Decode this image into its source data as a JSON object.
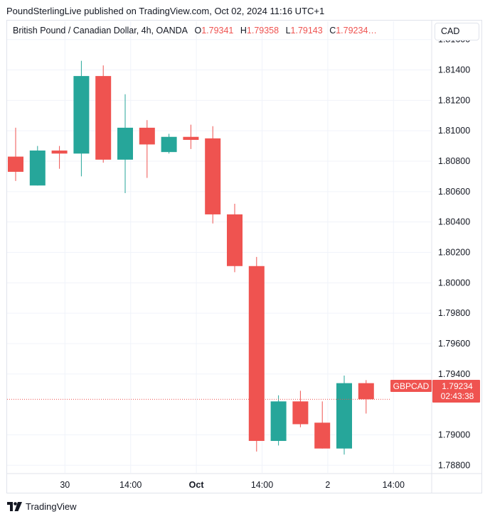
{
  "header": {
    "publisher_line": "PoundSterlingLive published on TradingView.com, Oct 02, 2024 11:16 UTC+1"
  },
  "legend": {
    "symbol": "British Pound / Canadian Dollar, 4h, OANDA",
    "o_label": "O",
    "o_value": "1.79341",
    "h_label": "H",
    "h_value": "1.79358",
    "l_label": "L",
    "l_value": "1.79143",
    "c_label": "C",
    "c_value": "1.79234…"
  },
  "currency_button": "CAD",
  "price_tag": {
    "ticker": "GBPCAD",
    "price": "1.79234",
    "countdown": "02:43:38"
  },
  "footer": {
    "brand": "TradingView"
  },
  "colors": {
    "up": "#26a69a",
    "down": "#ef5350",
    "grid": "#f0f3fa",
    "axis_text": "#131722"
  },
  "chart_data": {
    "type": "candlestick",
    "ylim": [
      1.7875,
      1.8172
    ],
    "y_ticks": [
      "1.81600",
      "1.81400",
      "1.81200",
      "1.81000",
      "1.80800",
      "1.80600",
      "1.80400",
      "1.80200",
      "1.80000",
      "1.79800",
      "1.79600",
      "1.79400",
      "1.79000",
      "1.78800"
    ],
    "x_ticks": [
      {
        "label": "30",
        "index": 2.25,
        "bold": false
      },
      {
        "label": "14:00",
        "index": 5.25,
        "bold": false
      },
      {
        "label": "Oct",
        "index": 8.25,
        "bold": true
      },
      {
        "label": "14:00",
        "index": 11.25,
        "bold": false
      },
      {
        "label": "2",
        "index": 14.25,
        "bold": false
      },
      {
        "label": "14:00",
        "index": 17.25,
        "bold": false
      }
    ],
    "last_price": 1.79234,
    "candles": [
      {
        "o": 1.8083,
        "h": 1.8102,
        "l": 1.8067,
        "c": 1.8073
      },
      {
        "o": 1.8064,
        "h": 1.809,
        "l": 1.8064,
        "c": 1.8087
      },
      {
        "o": 1.8087,
        "h": 1.809,
        "l": 1.8075,
        "c": 1.8085
      },
      {
        "o": 1.8085,
        "h": 1.8146,
        "l": 1.807,
        "c": 1.8136
      },
      {
        "o": 1.8136,
        "h": 1.8143,
        "l": 1.8079,
        "c": 1.8081
      },
      {
        "o": 1.8081,
        "h": 1.8124,
        "l": 1.8059,
        "c": 1.8102
      },
      {
        "o": 1.8102,
        "h": 1.8107,
        "l": 1.8069,
        "c": 1.8091
      },
      {
        "o": 1.8086,
        "h": 1.8098,
        "l": 1.8085,
        "c": 1.8096
      },
      {
        "o": 1.8096,
        "h": 1.8104,
        "l": 1.8088,
        "c": 1.8094
      },
      {
        "o": 1.8095,
        "h": 1.8103,
        "l": 1.8039,
        "c": 1.8045
      },
      {
        "o": 1.8045,
        "h": 1.8052,
        "l": 1.8007,
        "c": 1.8011
      },
      {
        "o": 1.8011,
        "h": 1.8017,
        "l": 1.7889,
        "c": 1.7896
      },
      {
        "o": 1.7896,
        "h": 1.7926,
        "l": 1.7893,
        "c": 1.7922
      },
      {
        "o": 1.7922,
        "h": 1.7929,
        "l": 1.7905,
        "c": 1.7907
      },
      {
        "o": 1.7908,
        "h": 1.7922,
        "l": 1.7891,
        "c": 1.7891
      },
      {
        "o": 1.7891,
        "h": 1.7939,
        "l": 1.7887,
        "c": 1.7934
      },
      {
        "o": 1.7934,
        "h": 1.7936,
        "l": 1.7914,
        "c": 1.79234
      }
    ]
  }
}
